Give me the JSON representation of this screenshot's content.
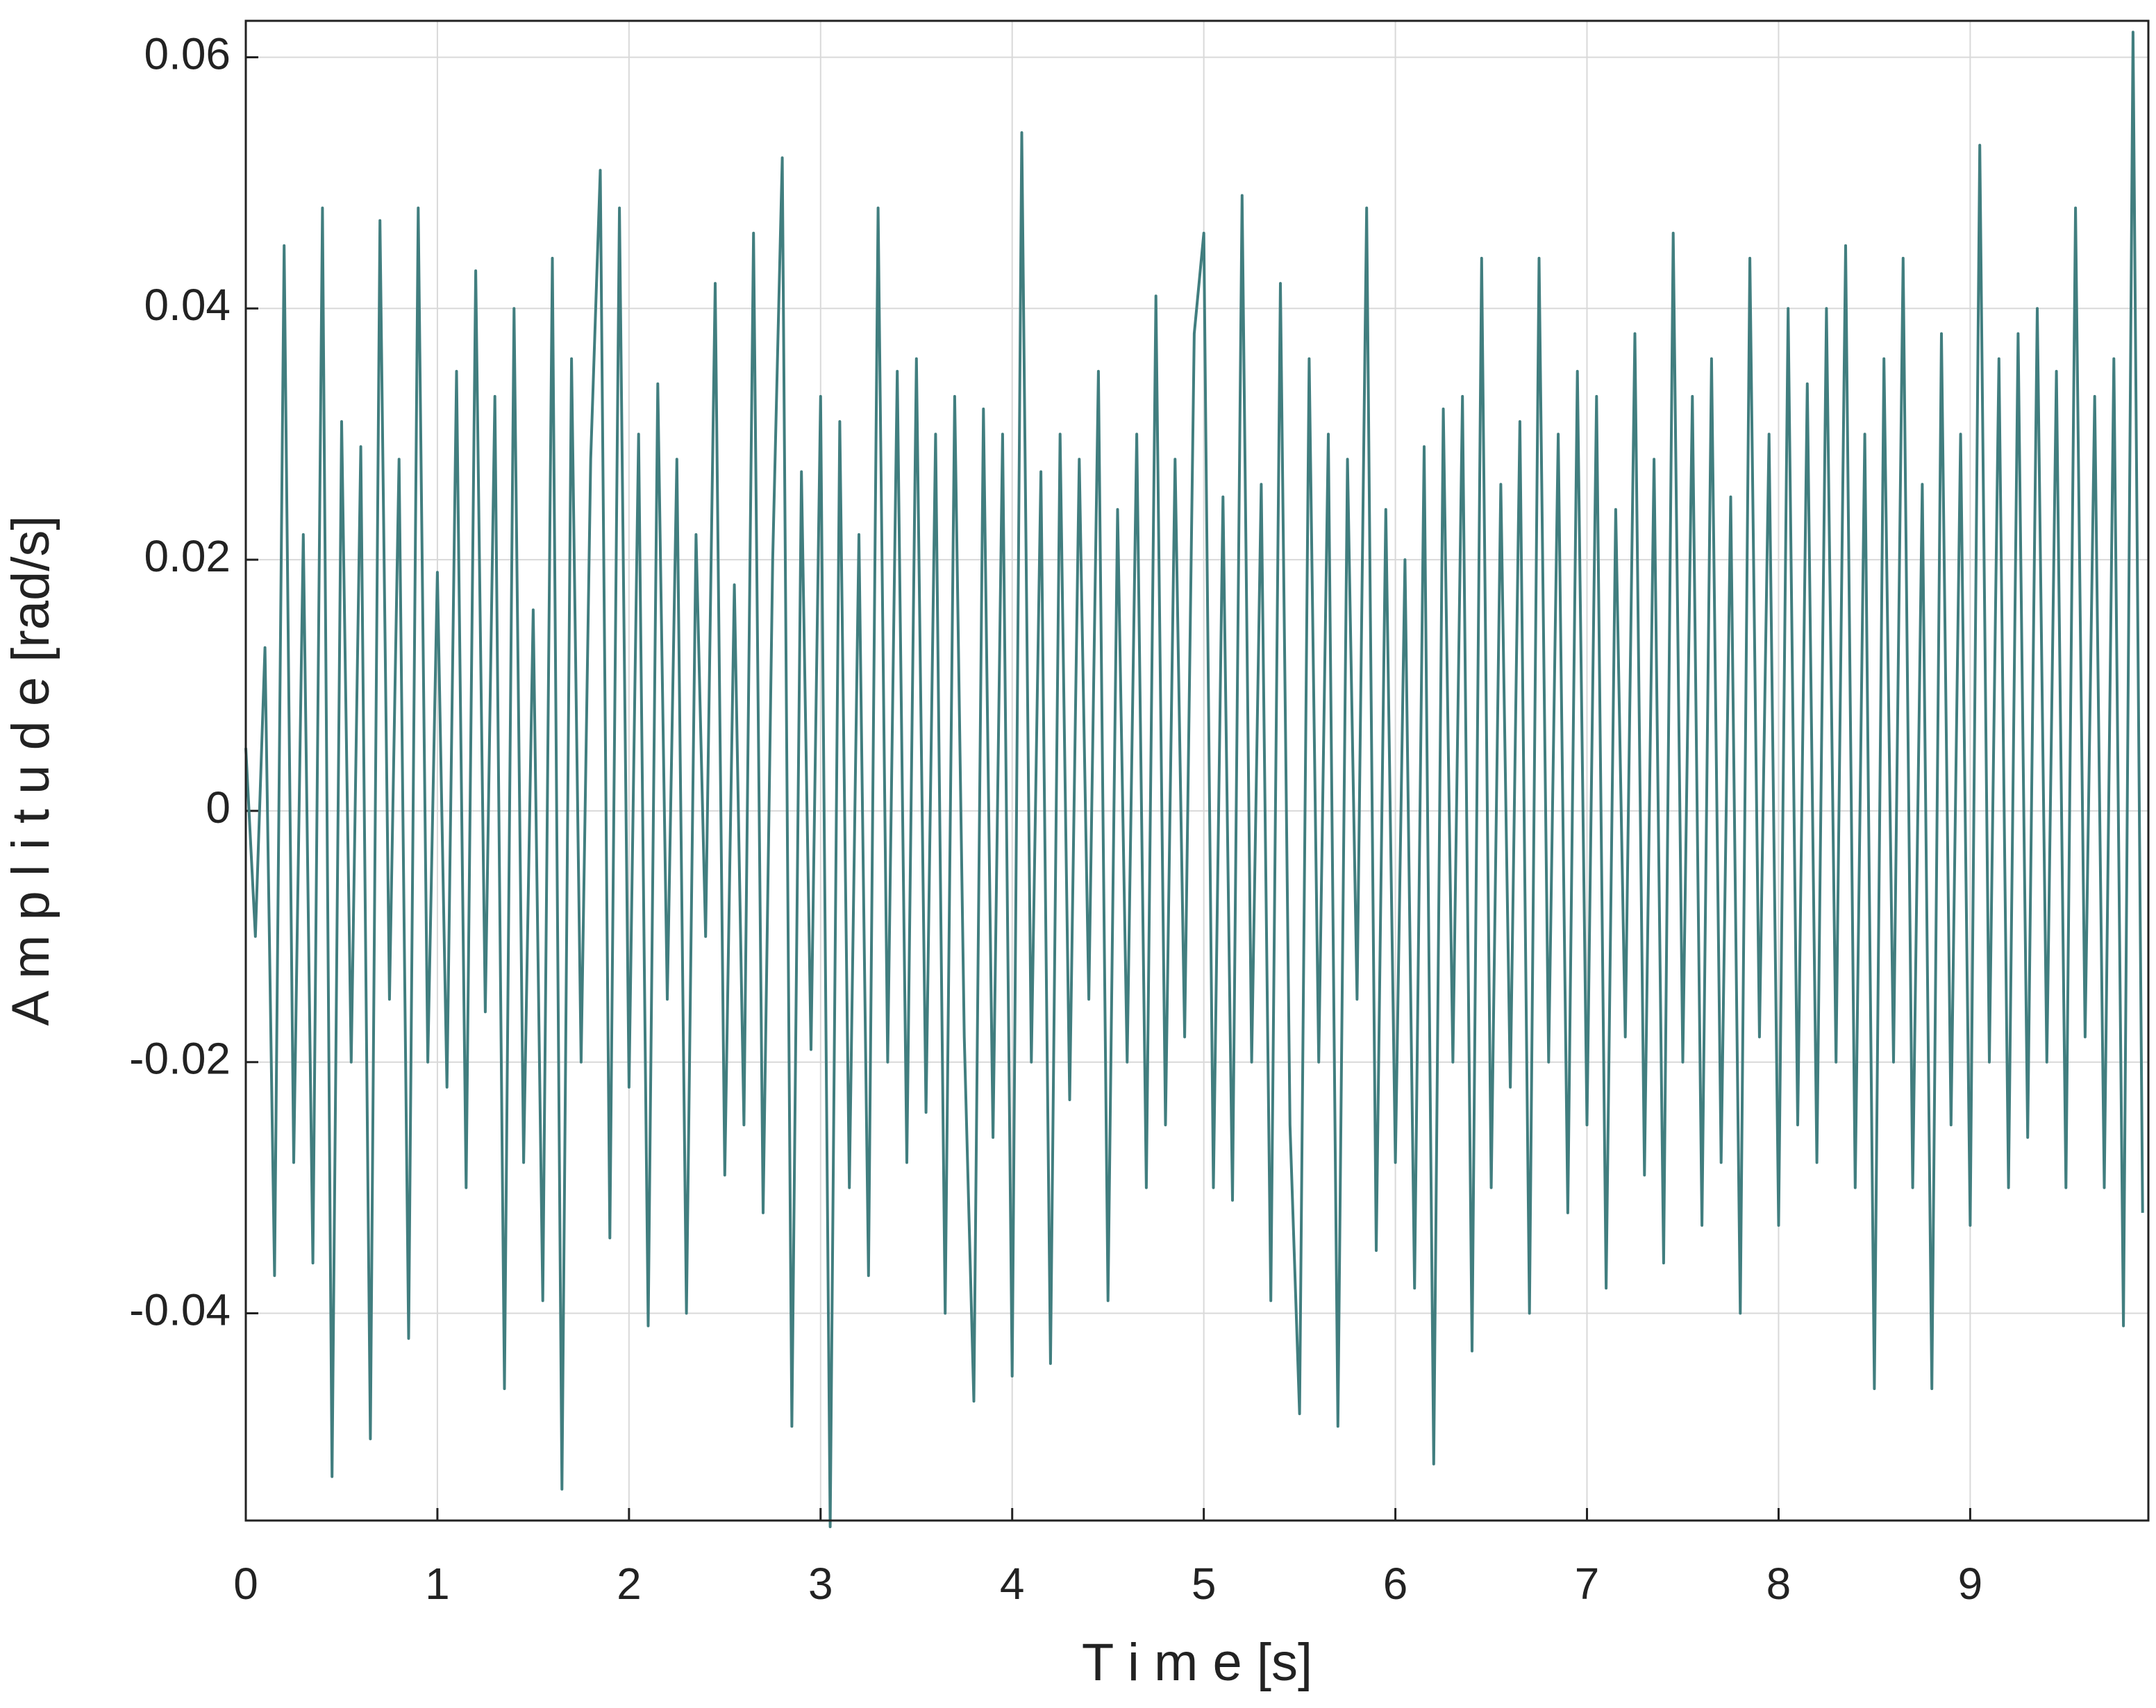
{
  "chart_data": {
    "type": "line",
    "xlabel": "T i m e [s]",
    "ylabel": "A m p l i t u d e  [rad/s]",
    "xlim": [
      0,
      9.93
    ],
    "ylim": [
      -0.0565,
      0.0629
    ],
    "xticks": [
      0,
      1,
      2,
      3,
      4,
      5,
      6,
      7,
      8,
      9
    ],
    "yticks": [
      -0.04,
      -0.02,
      0,
      0.02,
      0.04,
      0.06
    ],
    "grid": true,
    "series": [
      {
        "color": "#417e7f",
        "x": [
          0,
          0.05,
          0.1,
          0.15,
          0.2,
          0.25,
          0.3,
          0.35,
          0.4,
          0.45,
          0.5,
          0.55,
          0.6,
          0.65,
          0.7,
          0.75,
          0.8,
          0.85,
          0.9,
          0.95,
          1,
          1.05,
          1.1,
          1.15,
          1.2,
          1.25,
          1.3,
          1.35,
          1.4,
          1.45,
          1.5,
          1.55,
          1.6,
          1.65,
          1.7,
          1.75,
          1.8,
          1.85,
          1.9,
          1.95,
          2,
          2.05,
          2.1,
          2.15,
          2.2,
          2.25,
          2.3,
          2.35,
          2.4,
          2.45,
          2.5,
          2.55,
          2.6,
          2.65,
          2.7,
          2.75,
          2.8,
          2.85,
          2.9,
          2.95,
          3,
          3.05,
          3.1,
          3.15,
          3.2,
          3.25,
          3.3,
          3.35,
          3.4,
          3.45,
          3.5,
          3.55,
          3.6,
          3.65,
          3.7,
          3.75,
          3.8,
          3.85,
          3.9,
          3.95,
          4,
          4.05,
          4.1,
          4.15,
          4.2,
          4.25,
          4.3,
          4.35,
          4.4,
          4.45,
          4.5,
          4.55,
          4.6,
          4.65,
          4.7,
          4.75,
          4.8,
          4.85,
          4.9,
          4.95,
          5,
          5.05,
          5.1,
          5.15,
          5.2,
          5.25,
          5.3,
          5.35,
          5.4,
          5.45,
          5.5,
          5.55,
          5.6,
          5.65,
          5.7,
          5.75,
          5.8,
          5.85,
          5.9,
          5.95,
          6,
          6.05,
          6.1,
          6.15,
          6.2,
          6.25,
          6.3,
          6.35,
          6.4,
          6.45,
          6.5,
          6.55,
          6.6,
          6.65,
          6.7,
          6.75,
          6.8,
          6.85,
          6.9,
          6.95,
          7,
          7.05,
          7.1,
          7.15,
          7.2,
          7.25,
          7.3,
          7.35,
          7.4,
          7.45,
          7.5,
          7.55,
          7.6,
          7.65,
          7.7,
          7.75,
          7.8,
          7.85,
          7.9,
          7.95,
          8,
          8.05,
          8.1,
          8.15,
          8.2,
          8.25,
          8.3,
          8.35,
          8.4,
          8.45,
          8.5,
          8.55,
          8.6,
          8.65,
          8.7,
          8.75,
          8.8,
          8.85,
          8.9,
          8.95,
          9,
          9.05,
          9.1,
          9.15,
          9.2,
          9.25,
          9.3,
          9.35,
          9.4,
          9.45,
          9.5,
          9.55,
          9.6,
          9.65,
          9.7,
          9.75,
          9.8,
          9.85,
          9.9
        ],
        "values": [
          0.005,
          -0.01,
          0.013,
          -0.037,
          0.045,
          -0.028,
          0.022,
          -0.036,
          0.048,
          -0.053,
          0.031,
          -0.02,
          0.029,
          -0.05,
          0.047,
          -0.015,
          0.028,
          -0.042,
          0.048,
          -0.02,
          0.019,
          -0.022,
          0.035,
          -0.03,
          0.043,
          -0.016,
          0.033,
          -0.046,
          0.04,
          -0.028,
          0.016,
          -0.039,
          0.044,
          -0.054,
          0.036,
          -0.02,
          0.028,
          0.051,
          -0.034,
          0.048,
          -0.022,
          0.03,
          -0.041,
          0.034,
          -0.015,
          0.028,
          -0.04,
          0.022,
          -0.01,
          0.042,
          -0.029,
          0.018,
          -0.025,
          0.046,
          -0.032,
          0.02,
          0.052,
          -0.049,
          0.027,
          -0.019,
          0.033,
          -0.057,
          0.031,
          -0.03,
          0.022,
          -0.037,
          0.048,
          -0.02,
          0.035,
          -0.028,
          0.036,
          -0.024,
          0.03,
          -0.04,
          0.033,
          -0.018,
          -0.047,
          0.032,
          -0.026,
          0.03,
          -0.045,
          0.054,
          -0.02,
          0.027,
          -0.044,
          0.03,
          -0.023,
          0.028,
          -0.015,
          0.035,
          -0.039,
          0.024,
          -0.02,
          0.03,
          -0.03,
          0.041,
          -0.025,
          0.028,
          -0.018,
          0.038,
          0.046,
          -0.03,
          0.025,
          -0.031,
          0.049,
          -0.02,
          0.026,
          -0.039,
          0.042,
          -0.025,
          -0.048,
          0.036,
          -0.02,
          0.03,
          -0.049,
          0.028,
          -0.015,
          0.048,
          -0.035,
          0.024,
          -0.028,
          0.02,
          -0.038,
          0.029,
          -0.052,
          0.032,
          -0.02,
          0.033,
          -0.043,
          0.044,
          -0.03,
          0.026,
          -0.022,
          0.031,
          -0.04,
          0.044,
          -0.02,
          0.03,
          -0.032,
          0.035,
          -0.025,
          0.033,
          -0.038,
          0.024,
          -0.018,
          0.038,
          -0.029,
          0.028,
          -0.036,
          0.046,
          -0.02,
          0.033,
          -0.033,
          0.036,
          -0.028,
          0.025,
          -0.04,
          0.044,
          -0.018,
          0.03,
          -0.033,
          0.04,
          -0.025,
          0.034,
          -0.028,
          0.04,
          -0.02,
          0.045,
          -0.03,
          0.03,
          -0.046,
          0.036,
          -0.02,
          0.044,
          -0.03,
          0.026,
          -0.046,
          0.038,
          -0.025,
          0.03,
          -0.033,
          0.053,
          -0.02,
          0.036,
          -0.03,
          0.038,
          -0.026,
          0.04,
          -0.02,
          0.035,
          -0.03,
          0.048,
          -0.018,
          0.033,
          -0.03,
          0.036,
          -0.041,
          0.062,
          -0.032
        ]
      }
    ]
  }
}
